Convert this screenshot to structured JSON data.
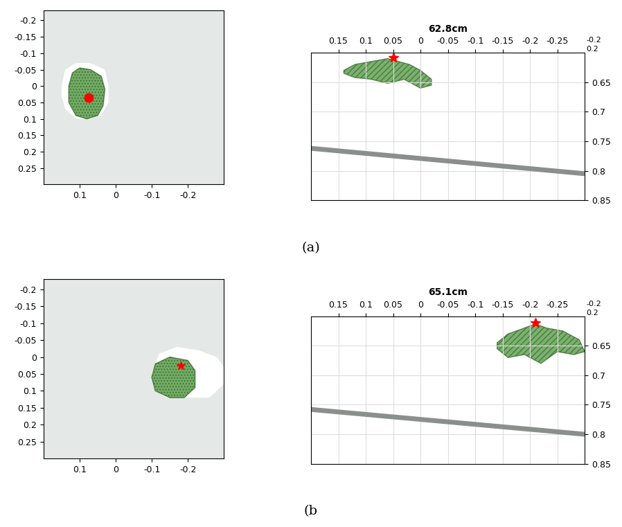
{
  "chart_data": [
    {
      "type": "top_view",
      "panel": "a",
      "xlim": [
        0.2,
        -0.3
      ],
      "xticks": [
        0.1,
        0,
        -0.1,
        -0.2
      ],
      "ylim": [
        0.3,
        -0.23
      ],
      "yticks": [
        -0.2,
        -0.15,
        -0.1,
        -0.05,
        0,
        0.05,
        0.1,
        0.15,
        0.2,
        0.25
      ],
      "white_x": [
        0.15,
        0.14,
        0.11,
        0.07,
        0.03,
        0.02,
        0.02,
        0.04,
        0.07,
        0.11,
        0.14,
        0.15
      ],
      "white_y": [
        0.0,
        -0.05,
        -0.07,
        -0.07,
        -0.05,
        0.0,
        0.05,
        0.09,
        0.1,
        0.1,
        0.07,
        0.03
      ],
      "blob_x": [
        0.13,
        0.12,
        0.1,
        0.07,
        0.04,
        0.03,
        0.035,
        0.05,
        0.08,
        0.11,
        0.13
      ],
      "blob_y": [
        0.0,
        -0.04,
        -0.055,
        -0.05,
        -0.03,
        0.01,
        0.06,
        0.09,
        0.1,
        0.09,
        0.05
      ],
      "marker_x": 0.075,
      "marker_y": 0.035,
      "marker": "o",
      "color": "#5a9e4a",
      "grid": false
    },
    {
      "type": "side_view",
      "panel": "a",
      "title": "62.8cm",
      "xlim": [
        0.2,
        -0.3
      ],
      "xticks": [
        0.15,
        0.1,
        0.05,
        0,
        -0.05,
        -0.1,
        -0.15,
        -0.2,
        -0.25
      ],
      "ylim": [
        0.85,
        0.6
      ],
      "yticks": [
        0.65,
        0.7,
        0.75,
        0.8,
        0.85
      ],
      "corner_labels": [
        "-0.2",
        "0.2"
      ],
      "blob_x": [
        0.14,
        0.12,
        0.09,
        0.06,
        0.04,
        0.02,
        0.0,
        -0.02,
        -0.02,
        0.0,
        0.03,
        0.06,
        0.09,
        0.12,
        0.14
      ],
      "blob_y": [
        0.63,
        0.62,
        0.615,
        0.61,
        0.615,
        0.62,
        0.63,
        0.645,
        0.655,
        0.66,
        0.645,
        0.652,
        0.645,
        0.642,
        0.635
      ],
      "floor_x": [
        0.2,
        -0.3
      ],
      "floor_y": [
        0.762,
        0.805
      ],
      "marker_x": 0.05,
      "marker_y": 0.608,
      "marker": "*",
      "color": "#5a9e4a",
      "grid": true
    },
    {
      "type": "top_view",
      "panel": "b",
      "xlim": [
        0.2,
        -0.3
      ],
      "xticks": [
        0.1,
        0,
        -0.1,
        -0.2
      ],
      "ylim": [
        0.3,
        -0.23
      ],
      "yticks": [
        -0.2,
        -0.15,
        -0.1,
        -0.05,
        0,
        0.05,
        0.1,
        0.15,
        0.2,
        0.25
      ],
      "white_x": [
        -0.1,
        -0.12,
        -0.17,
        -0.23,
        -0.28,
        -0.3,
        -0.3,
        -0.26,
        -0.2,
        -0.14,
        -0.11
      ],
      "white_y": [
        0.05,
        -0.01,
        -0.03,
        -0.02,
        0.0,
        0.03,
        0.08,
        0.12,
        0.12,
        0.12,
        0.1
      ],
      "blob_x": [
        -0.1,
        -0.11,
        -0.15,
        -0.2,
        -0.22,
        -0.22,
        -0.19,
        -0.15,
        -0.11
      ],
      "blob_y": [
        0.06,
        0.02,
        0.0,
        0.01,
        0.04,
        0.09,
        0.12,
        0.12,
        0.1
      ],
      "marker_x": -0.18,
      "marker_y": 0.025,
      "marker": "*",
      "color": "#5a9e4a",
      "grid": false
    },
    {
      "type": "side_view",
      "panel": "b",
      "title": "65.1cm",
      "xlim": [
        0.2,
        -0.3
      ],
      "xticks": [
        0.15,
        0.1,
        0.05,
        0,
        -0.05,
        -0.1,
        -0.15,
        -0.2,
        -0.25
      ],
      "ylim": [
        0.85,
        0.6
      ],
      "yticks": [
        0.65,
        0.7,
        0.75,
        0.8,
        0.85
      ],
      "corner_labels": [
        "-0.2",
        "0.2"
      ],
      "blob_x": [
        -0.14,
        -0.16,
        -0.19,
        -0.21,
        -0.23,
        -0.26,
        -0.29,
        -0.3,
        -0.28,
        -0.25,
        -0.22,
        -0.19,
        -0.16,
        -0.14
      ],
      "blob_y": [
        0.645,
        0.63,
        0.62,
        0.613,
        0.62,
        0.625,
        0.64,
        0.66,
        0.665,
        0.66,
        0.68,
        0.665,
        0.67,
        0.655
      ],
      "floor_x": [
        0.2,
        -0.3
      ],
      "floor_y": [
        0.758,
        0.8
      ],
      "marker_x": -0.21,
      "marker_y": 0.611,
      "marker": "*",
      "color": "#5a9e4a",
      "grid": true
    }
  ],
  "panel_labels": [
    "(a)",
    "(b"
  ]
}
